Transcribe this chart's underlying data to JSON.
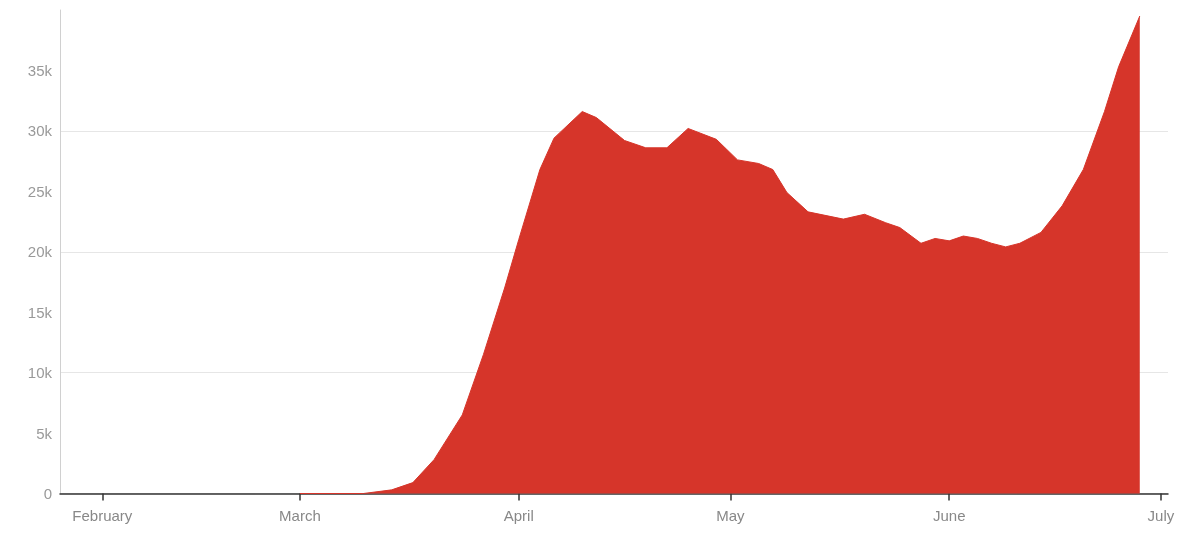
{
  "chart_data": {
    "type": "area",
    "color": "#d6352a",
    "grid": "y",
    "marker": "none",
    "x": [
      "--03-01",
      "--03-10",
      "--03-14",
      "--03-17",
      "--03-20",
      "--03-24",
      "--03-27",
      "--03-30",
      "--04-01",
      "--04-04",
      "--04-06",
      "--04-10",
      "--04-12",
      "--04-16",
      "--04-19",
      "--04-22",
      "--04-25",
      "--04-29",
      "--05-02",
      "--05-05",
      "--05-07",
      "--05-09",
      "--05-12",
      "--05-17",
      "--05-20",
      "--05-23",
      "--05-25",
      "--05-28",
      "--05-30",
      "--06-01",
      "--06-03",
      "--06-05",
      "--06-07",
      "--06-09",
      "--06-11",
      "--06-14",
      "--06-17",
      "--06-20",
      "--06-23",
      "--06-25",
      "--06-28"
    ],
    "values": [
      0,
      0,
      300,
      900,
      2800,
      6500,
      11500,
      17000,
      21000,
      26800,
      29400,
      31600,
      31100,
      29200,
      28600,
      28600,
      30200,
      29300,
      27600,
      27300,
      26800,
      24900,
      23300,
      22700,
      23100,
      22400,
      22000,
      20700,
      21100,
      20900,
      21300,
      21100,
      20700,
      20400,
      20700,
      21600,
      23800,
      26800,
      31600,
      35300,
      39500
    ],
    "xlim": [
      "--01-26",
      "--07-02"
    ],
    "xticks": [
      {
        "value": "--02-01",
        "label": "February"
      },
      {
        "value": "--03-01",
        "label": "March"
      },
      {
        "value": "--04-01",
        "label": "April"
      },
      {
        "value": "--05-01",
        "label": "May"
      },
      {
        "value": "--06-01",
        "label": "June"
      },
      {
        "value": "--07-01",
        "label": "July"
      }
    ],
    "ylim": [
      0,
      40000
    ],
    "yticks": [
      0,
      {
        "value": 5000,
        "label": "5k"
      },
      {
        "value": 10000,
        "label": "10k"
      },
      {
        "value": 15000,
        "label": "15k"
      },
      {
        "value": 20000,
        "label": "20k"
      },
      {
        "value": 25000,
        "label": "25k"
      },
      {
        "value": 30000,
        "label": "30k"
      },
      {
        "value": 35000,
        "label": "35k"
      }
    ]
  }
}
